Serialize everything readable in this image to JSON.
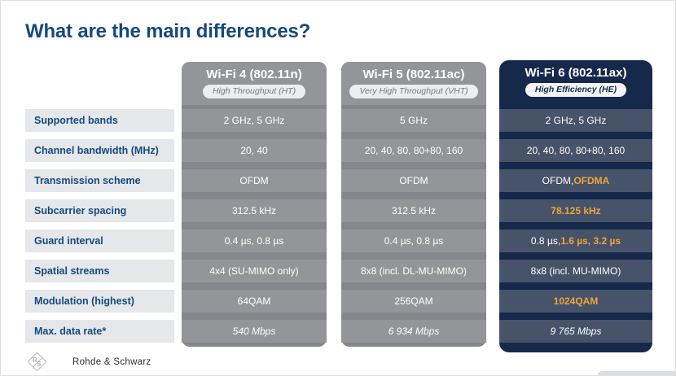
{
  "slide": {
    "title": "What are the main differences?"
  },
  "table": {
    "row_labels": [
      "Supported bands",
      "Channel bandwidth (MHz)",
      "Transmission scheme",
      "Subcarrier spacing",
      "Guard interval",
      "Spatial streams",
      "Modulation (highest)",
      "Max. data rate*"
    ],
    "columns": [
      {
        "title": "Wi-Fi 4 (802.11n)",
        "subtitle": "High Throughput (HT)",
        "theme": "gray",
        "values": [
          {
            "text": "2 GHz, 5 GHz"
          },
          {
            "text": "20, 40"
          },
          {
            "text": "OFDM"
          },
          {
            "text": "312.5 kHz"
          },
          {
            "text": "0.4 µs, 0.8 µs"
          },
          {
            "text": "4x4 (SU-MIMO only)"
          },
          {
            "text": "64QAM"
          },
          {
            "text": "540 Mbps",
            "italic": true
          }
        ]
      },
      {
        "title": "Wi-Fi 5 (802.11ac)",
        "subtitle": "Very High Throughput (VHT)",
        "theme": "gray",
        "values": [
          {
            "text": "5 GHz"
          },
          {
            "text": "20, 40, 80, 80+80, 160"
          },
          {
            "text": "OFDM"
          },
          {
            "text": "312.5 kHz"
          },
          {
            "text": "0.4 µs, 0.8 µs"
          },
          {
            "text": "8x8 (incl. DL-MU-MIMO)"
          },
          {
            "text": "256QAM"
          },
          {
            "text": "6 934 Mbps",
            "italic": true
          }
        ]
      },
      {
        "title": "Wi-Fi 6 (802.11ax)",
        "subtitle": "High Efficiency (HE)",
        "theme": "navy",
        "values": [
          {
            "text": "2 GHz, 5 GHz"
          },
          {
            "text": "20, 40, 80, 80+80, 160"
          },
          {
            "text": "OFDM, OFDMA",
            "highlight": "OFDMA"
          },
          {
            "text": "78.125 kHz",
            "highlight": "78.125 kHz"
          },
          {
            "text": "0.8 µs, 1.6 µs, 3.2 µs",
            "highlight": "1.6 µs, 3.2 µs"
          },
          {
            "text": "8x8 (incl. MU-MIMO)"
          },
          {
            "text": "1024QAM",
            "highlight": "1024QAM"
          },
          {
            "text": "9 765 Mbps",
            "italic": true
          }
        ]
      }
    ]
  },
  "footer": {
    "brand": "Rohde & Schwarz",
    "logo_r": "R",
    "logo_s": "S",
    "logo_icon": "rohde-schwarz-diamond-logo"
  },
  "colors": {
    "title_blue": "#154A7E",
    "label_bg": "#E5E7EA",
    "gray_card": "#85878D",
    "gray_cell": "#939599",
    "navy_dark": "#16294B",
    "navy_cell": "#475369",
    "accent_orange": "#F0A33C",
    "cell_text": "#FFFFFF"
  }
}
